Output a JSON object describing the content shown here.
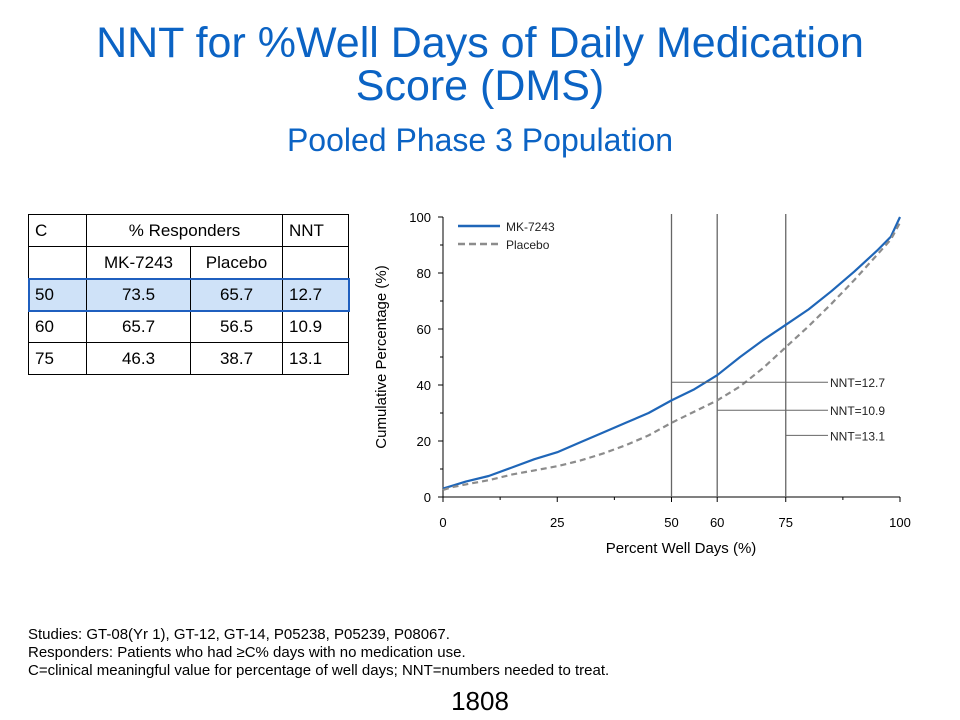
{
  "title_line1": "NNT for %Well Days of Daily Medication",
  "title_line2": "Score (DMS)",
  "subtitle": "Pooled Phase 3 Population",
  "table": {
    "headers": [
      "C",
      "% Responders",
      "NNT"
    ],
    "subheaders": [
      "",
      "MK-7243",
      "Placebo",
      ""
    ],
    "rows": [
      [
        "50",
        "73.5",
        "65.7",
        "12.7"
      ],
      [
        "60",
        "65.7",
        "56.5",
        "10.9"
      ],
      [
        "75",
        "46.3",
        "38.7",
        "13.1"
      ]
    ],
    "highlight_row": 0,
    "highlight_color": "#cfe2f8"
  },
  "chart_data": {
    "type": "line",
    "xlabel": "Percent Well Days (%)",
    "ylabel": "Cumulative Percentage (%)",
    "xlim": [
      0,
      100
    ],
    "ylim": [
      0,
      100
    ],
    "x_ticks": [
      "0",
      "25",
      "50",
      "60",
      "75",
      "100"
    ],
    "y_ticks": [
      "0",
      "20",
      "40",
      "60",
      "80",
      "100"
    ],
    "legend_position": "top-left",
    "grid": false,
    "series": [
      {
        "name": "MK-7243",
        "color": "#1f66b8",
        "style": "solid",
        "x": [
          0,
          2,
          5,
          10,
          15,
          20,
          25,
          30,
          35,
          40,
          45,
          50,
          55,
          60,
          65,
          70,
          75,
          80,
          85,
          90,
          95,
          98,
          100
        ],
        "y": [
          3,
          4,
          5.5,
          7.5,
          10.5,
          13.5,
          16,
          19.5,
          23,
          26.5,
          30,
          34.5,
          38.5,
          43.5,
          50,
          56,
          61.5,
          67,
          73.5,
          80.5,
          88,
          93,
          100
        ]
      },
      {
        "name": "Placebo",
        "color": "#8c8c8c",
        "style": "dashed",
        "x": [
          0,
          2,
          5,
          10,
          15,
          20,
          25,
          30,
          35,
          40,
          45,
          50,
          55,
          60,
          65,
          70,
          75,
          80,
          85,
          90,
          95,
          98,
          100
        ],
        "y": [
          2.5,
          3.5,
          4.5,
          6,
          8,
          9.5,
          11,
          13,
          15.5,
          18.5,
          22,
          26.5,
          30.5,
          34.5,
          39.5,
          46,
          53.5,
          61,
          69,
          77.5,
          86.5,
          92,
          98
        ]
      }
    ],
    "annotations": [
      {
        "label": "NNT=12.7",
        "x": 50,
        "y": 41
      },
      {
        "label": "NNT=10.9",
        "x": 60,
        "y": 31
      },
      {
        "label": "NNT=13.1",
        "x": 75,
        "y": 22
      }
    ],
    "vertical_lines": [
      50,
      60,
      75
    ]
  },
  "footnotes": [
    "Studies: GT-08(Yr 1), GT-12, GT-14, P05238, P05239, P08067.",
    "Responders: Patients who had ≥C% days with no medication use.",
    "C=clinical meaningful value for percentage of well days; NNT=numbers needed to treat."
  ],
  "page_number": "1808"
}
